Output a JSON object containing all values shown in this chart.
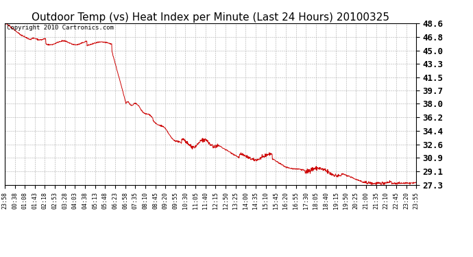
{
  "title": "Outdoor Temp (vs) Heat Index per Minute (Last 24 Hours) 20100325",
  "copyright_text": "Copyright 2010 Cartronics.com",
  "line_color": "#cc0000",
  "background_color": "#ffffff",
  "grid_color": "#aaaaaa",
  "yticks": [
    27.3,
    29.1,
    30.9,
    32.6,
    34.4,
    36.2,
    38.0,
    39.7,
    41.5,
    43.3,
    45.0,
    46.8,
    48.6
  ],
  "ylim": [
    27.3,
    48.6
  ],
  "xtick_labels": [
    "23:58",
    "00:38",
    "01:08",
    "01:43",
    "02:18",
    "02:53",
    "03:28",
    "04:03",
    "04:38",
    "05:13",
    "05:48",
    "06:23",
    "06:58",
    "07:35",
    "08:10",
    "08:45",
    "09:20",
    "09:55",
    "10:30",
    "11:05",
    "11:40",
    "12:15",
    "12:50",
    "13:25",
    "14:00",
    "14:35",
    "15:10",
    "15:45",
    "16:20",
    "16:55",
    "17:30",
    "18:05",
    "18:40",
    "19:15",
    "19:50",
    "20:25",
    "21:00",
    "21:35",
    "22:10",
    "22:45",
    "23:20",
    "23:55"
  ],
  "title_fontsize": 11,
  "tick_fontsize": 6,
  "ytick_fontsize": 9,
  "copyright_fontsize": 6.5
}
